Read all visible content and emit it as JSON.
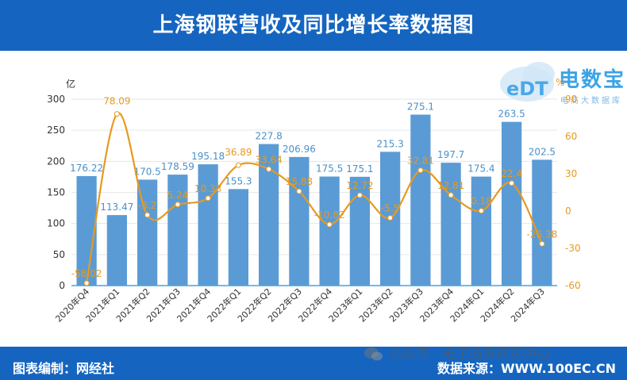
{
  "header": {
    "title": "上海钢联营收及同比增长率数据图"
  },
  "footer": {
    "editor": "图表编制：网经社",
    "source": "数据来源：WWW.100EC.CN"
  },
  "watermark": {
    "text": "公众号 · 电子商务研究中心"
  },
  "logo": {
    "main": "电数宝",
    "sub": "电商大数据库",
    "badge": "eDT"
  },
  "chart_data": {
    "type": "bar",
    "categories": [
      "2020年Q4",
      "2021年Q1",
      "2021年Q2",
      "2021年Q3",
      "2021年Q4",
      "2022年Q1",
      "2022年Q2",
      "2022年Q3",
      "2022年Q4",
      "2023年Q1",
      "2023年Q2",
      "2023年Q3",
      "2023年Q4",
      "2024年Q1",
      "2024年Q2",
      "2024年Q3"
    ],
    "ylabel": "亿",
    "y2label": "%",
    "ylim": [
      0,
      300
    ],
    "y2lim": [
      -60,
      90
    ],
    "yticks": [
      "0",
      "50",
      "100",
      "150",
      "200",
      "250",
      "300"
    ],
    "y2ticks": [
      "-60",
      "-30",
      "0",
      "30",
      "60",
      "90"
    ],
    "series": [
      {
        "type": "bar",
        "color": "#5b9bd5",
        "values": [
          176.22,
          113.47,
          170.5,
          178.59,
          195.18,
          155.3,
          227.8,
          206.96,
          175.5,
          175.1,
          215.3,
          275.1,
          197.7,
          175.4,
          263.5,
          202.5
        ],
        "labels": [
          "176.22",
          "113.47",
          "170.5",
          "178.59",
          "195.18",
          "155.3",
          "227.8",
          "206.96",
          "175.5",
          "175.1",
          "215.3",
          "275.1",
          "197.7",
          "175.4",
          "263.5",
          "202.5"
        ]
      },
      {
        "type": "line",
        "color": "#e69a1f",
        "smooth": true,
        "values": [
          -58.02,
          78.09,
          -3.2,
          5.24,
          10.33,
          36.89,
          33.64,
          15.88,
          -10.82,
          12.72,
          -5.5,
          32.81,
          12.81,
          0.18,
          22.4,
          -26.38
        ],
        "labels": [
          "-58.02",
          "78.09",
          "-3.2",
          "5.24",
          "10.33",
          "36.89",
          "33.64",
          "15.88",
          "-10.82",
          "12.72",
          "-5.5",
          "32.81",
          "12.81",
          "0.18",
          "22.4",
          "-26.38"
        ]
      }
    ],
    "grid": true,
    "legend": "none"
  }
}
